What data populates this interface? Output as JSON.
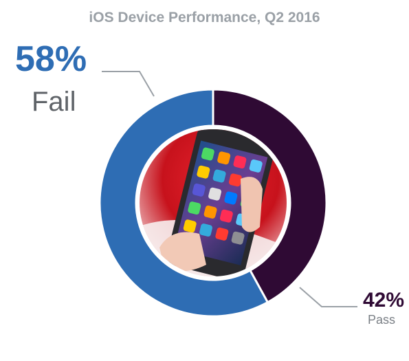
{
  "chart_data": {
    "type": "pie",
    "variant": "donut",
    "title": "iOS Device Performance, Q2 2016",
    "slices": [
      {
        "label": "Fail",
        "value": 58,
        "display": "58%",
        "color": "#2e6db4"
      },
      {
        "label": "Pass",
        "value": 42,
        "display": "42%",
        "color": "#2f0a34"
      }
    ],
    "center_image": "hand-holding-iphone-icon"
  },
  "colors": {
    "title": "#9aa0a6",
    "leader": "#9aa0a6",
    "label_text": "#5f6368"
  }
}
